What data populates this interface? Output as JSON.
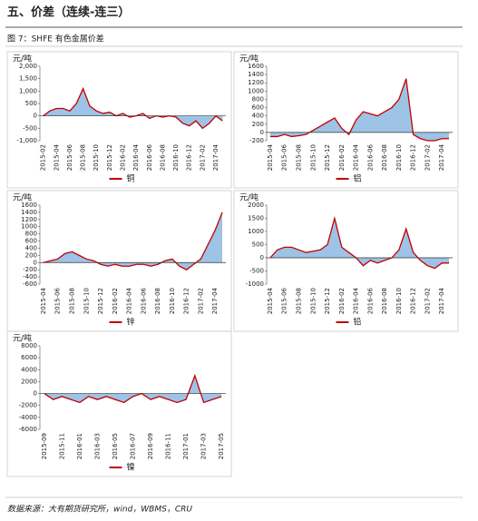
{
  "header": {
    "title": "五、价差（连续-连三）"
  },
  "caption": "图 7：SHFE 有色金属价差",
  "source": "数据来源：大有期货研究所，wind，WBMS，CRU",
  "chart_data": [
    {
      "type": "area",
      "y_label": "元/吨",
      "area_color": "#9dc3e6",
      "categories": [
        "2015-02",
        null,
        "2015-04",
        null,
        "2015-06",
        null,
        "2015-08",
        null,
        "2015-10",
        null,
        "2015-12",
        null,
        "2016-02",
        null,
        "2016-04",
        null,
        "2016-06",
        null,
        "2016-08",
        null,
        "2016-10",
        null,
        "2016-12",
        null,
        "2017-02",
        null,
        "2017-04",
        null
      ],
      "series": [
        {
          "name": "铜",
          "color": "#c00000",
          "values": [
            0,
            200,
            300,
            300,
            200,
            500,
            1100,
            400,
            200,
            100,
            150,
            0,
            100,
            -50,
            0,
            100,
            -100,
            0,
            -50,
            0,
            -50,
            -300,
            -400,
            -200,
            -500,
            -300,
            0,
            -200
          ]
        }
      ],
      "ylim": [
        -1000,
        2000
      ],
      "yticks": [
        {
          "value": -1000,
          "label": "-1,000"
        },
        -500,
        0,
        500,
        {
          "value": 1000,
          "label": "1,000"
        },
        {
          "value": 1500,
          "label": "1,500"
        },
        {
          "value": 2000,
          "label": "2,000"
        }
      ]
    },
    {
      "type": "area",
      "y_label": "元/吨",
      "area_color": "#9dc3e6",
      "categories": [
        "2015-04",
        null,
        "2015-06",
        null,
        "2015-08",
        null,
        "2015-10",
        null,
        "2015-12",
        null,
        "2016-02",
        null,
        "2016-04",
        null,
        "2016-06",
        null,
        "2016-08",
        null,
        "2016-10",
        null,
        "2016-12",
        null,
        "2017-02",
        null,
        "2017-04",
        null
      ],
      "series": [
        {
          "name": "铝",
          "color": "#c00000",
          "values": [
            -100,
            -100,
            -50,
            -100,
            -80,
            -50,
            50,
            150,
            250,
            350,
            100,
            -50,
            300,
            500,
            450,
            400,
            500,
            600,
            800,
            1300,
            -50,
            -150,
            -200,
            -200,
            -150,
            -150
          ]
        }
      ],
      "ylim": [
        -200,
        1600
      ],
      "yticks": [
        -200,
        0,
        200,
        400,
        600,
        800,
        1000,
        1200,
        1400,
        1600
      ]
    },
    {
      "type": "area",
      "y_label": "元/吨",
      "area_color": "#9dc3e6",
      "categories": [
        "2015-04",
        null,
        "2015-06",
        null,
        "2015-08",
        null,
        "2015-10",
        null,
        "2015-12",
        null,
        "2016-02",
        null,
        "2016-04",
        null,
        "2016-06",
        null,
        "2016-08",
        null,
        "2016-10",
        null,
        "2016-12",
        null,
        "2017-02",
        null,
        "2017-04",
        null
      ],
      "series": [
        {
          "name": "锌",
          "color": "#c00000",
          "values": [
            0,
            50,
            100,
            250,
            300,
            200,
            100,
            50,
            -50,
            -100,
            -50,
            -100,
            -100,
            -50,
            -50,
            -100,
            -50,
            50,
            100,
            -100,
            -200,
            -50,
            100,
            500,
            900,
            1400
          ]
        }
      ],
      "ylim": [
        -600,
        1600
      ],
      "yticks": [
        -600,
        -400,
        -200,
        0,
        200,
        400,
        600,
        800,
        1000,
        1200,
        1400,
        1600
      ]
    },
    {
      "type": "area",
      "y_label": "元/吨",
      "area_color": "#9dc3e6",
      "categories": [
        "2015-04",
        null,
        "2015-06",
        null,
        "2015-08",
        null,
        "2015-10",
        null,
        "2015-12",
        null,
        "2016-02",
        null,
        "2016-04",
        null,
        "2016-06",
        null,
        "2016-08",
        null,
        "2016-10",
        null,
        "2016-12",
        null,
        "2017-02",
        null,
        "2017-04",
        null
      ],
      "series": [
        {
          "name": "铅",
          "color": "#c00000",
          "values": [
            0,
            300,
            400,
            400,
            300,
            200,
            250,
            300,
            500,
            1500,
            400,
            200,
            0,
            -300,
            -100,
            -200,
            -100,
            0,
            300,
            1100,
            200,
            -100,
            -300,
            -400,
            -200,
            -200
          ]
        }
      ],
      "ylim": [
        -1000,
        2000
      ],
      "yticks": [
        -1000,
        -500,
        0,
        500,
        1000,
        1500,
        2000
      ]
    },
    {
      "type": "area",
      "y_label": "元/吨",
      "area_color": "#9dc3e6",
      "categories": [
        "2015-09",
        null,
        "2015-11",
        null,
        "2016-01",
        null,
        "2016-03",
        null,
        "2016-05",
        null,
        "2016-07",
        null,
        "2016-09",
        null,
        "2016-11",
        null,
        "2017-01",
        null,
        "2017-03",
        null,
        "2017-05"
      ],
      "series": [
        {
          "name": "镍",
          "color": "#c00000",
          "values": [
            0,
            -1000,
            -500,
            -1000,
            -1500,
            -500,
            -1000,
            -500,
            -1000,
            -1500,
            -500,
            0,
            -1000,
            -500,
            -1000,
            -1500,
            -1000,
            3000,
            -1500,
            -1000,
            -500
          ]
        }
      ],
      "ylim": [
        -6000,
        8000
      ],
      "yticks": [
        -6000,
        -4000,
        -2000,
        0,
        2000,
        4000,
        6000,
        8000
      ]
    }
  ]
}
